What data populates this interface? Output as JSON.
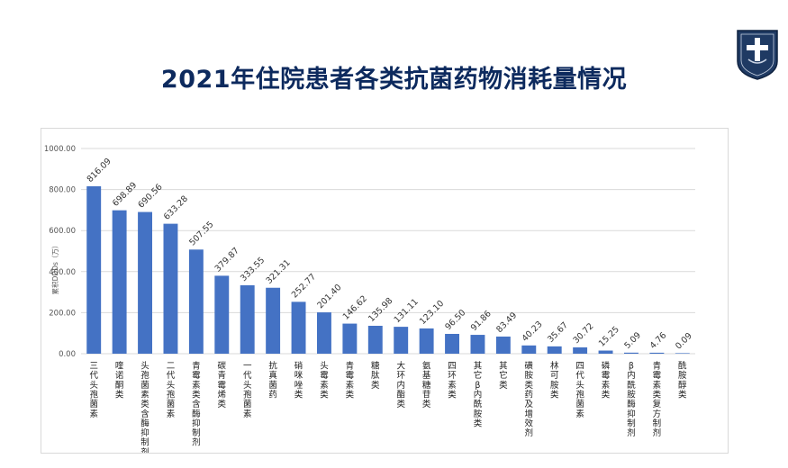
{
  "page": {
    "title": "2021年住院患者各类抗菌药物消耗量情况"
  },
  "colors": {
    "bar": "#4472c4",
    "title": "#0d2a5e",
    "grid": "#d9d9d9"
  },
  "chart_data": {
    "type": "bar",
    "title": "",
    "xlabel": "",
    "ylabel": "累积DDDs（万）",
    "ylim": [
      0,
      1000
    ],
    "yticks": [
      "0.00",
      "200.00",
      "400.00",
      "600.00",
      "800.00",
      "1000.00"
    ],
    "ytick_values": [
      0,
      200,
      400,
      600,
      800,
      1000
    ],
    "grid": true,
    "categories": [
      "三代头孢菌素",
      "喹诺酮类",
      "头孢菌素类含酶抑制剂",
      "二代头孢菌素",
      "青霉素类含酶抑制剂",
      "碳青霉烯类",
      "一代头孢菌素",
      "抗真菌药",
      "硝咪唑类",
      "头霉素类",
      "青霉素类",
      "糖肽类",
      "大环内酯类",
      "氨基糖苷类",
      "四环素类",
      "其它β内酰胺类",
      "其它类",
      "磺胺类药及增效剂",
      "林可胺类",
      "四代头孢菌素",
      "磷霉素类",
      "β内酰胺酶抑制剂",
      "青霉素类复方制剂",
      "酰胺醇类"
    ],
    "values": [
      816.09,
      698.89,
      690.56,
      633.28,
      507.55,
      379.87,
      333.55,
      321.31,
      252.77,
      201.4,
      146.62,
      135.98,
      131.11,
      123.1,
      96.5,
      91.86,
      83.49,
      40.23,
      35.67,
      30.72,
      15.25,
      5.09,
      4.76,
      0.09
    ],
    "value_labels": [
      "816.09",
      "698.89",
      "690.56",
      "633.28",
      "507.55",
      "379.87",
      "333.55",
      "321.31",
      "252.77",
      "201.40",
      "146.62",
      "135.98",
      "131.11",
      "123.10",
      "96.50",
      "91.86",
      "83.49",
      "40.23",
      "35.67",
      "30.72",
      "15.25",
      "5.09",
      "4.76",
      "0.09"
    ]
  }
}
